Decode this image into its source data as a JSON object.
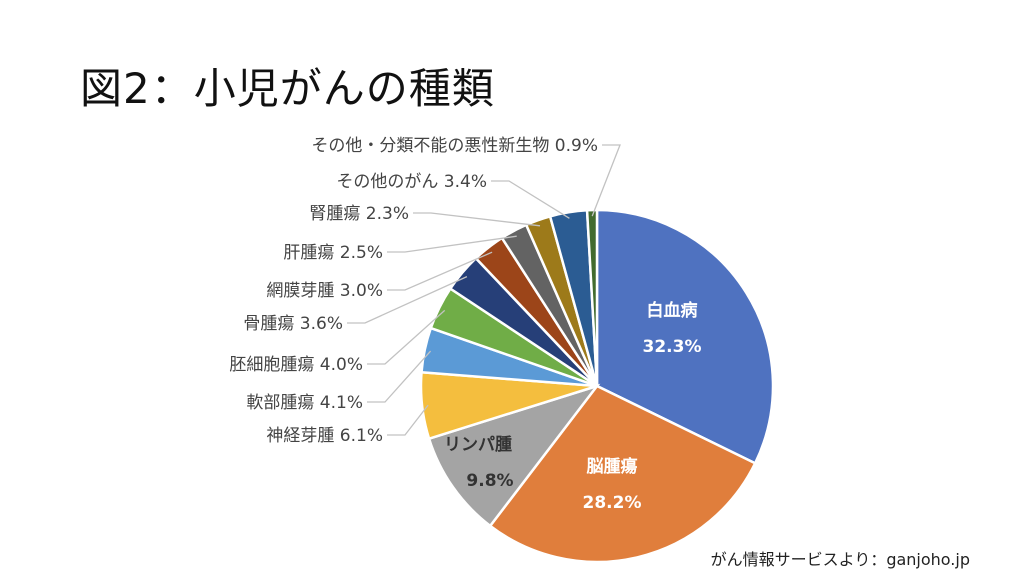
{
  "title": "図2：小児がんの種類",
  "source": "がん情報サービスより：ganjoho.jp",
  "chart_data": {
    "type": "pie",
    "title": "図2：小児がんの種類",
    "slices": [
      {
        "name": "白血病",
        "value": 32.3,
        "label": "32.3%",
        "color": "#4f72c0",
        "label_pos": "inside"
      },
      {
        "name": "脳腫瘍",
        "value": 28.2,
        "label": "28.2%",
        "color": "#e07e3c",
        "label_pos": "inside"
      },
      {
        "name": "リンパ腫",
        "value": 9.8,
        "label": "9.8%",
        "color": "#a4a4a4",
        "label_pos": "inside"
      },
      {
        "name": "神経芽腫",
        "value": 6.1,
        "label": "6.1%",
        "color": "#f4be3e",
        "label_pos": "outside"
      },
      {
        "name": "軟部腫瘍",
        "value": 4.1,
        "label": "4.1%",
        "color": "#5b9ad6",
        "label_pos": "outside"
      },
      {
        "name": "胚細胞腫瘍",
        "value": 4.0,
        "label": "4.0%",
        "color": "#70ad47",
        "label_pos": "outside"
      },
      {
        "name": "骨腫瘍",
        "value": 3.6,
        "label": "3.6%",
        "color": "#263f78",
        "label_pos": "outside"
      },
      {
        "name": "網膜芽腫",
        "value": 3.0,
        "label": "3.0%",
        "color": "#9c4519",
        "label_pos": "outside"
      },
      {
        "name": "肝腫瘍",
        "value": 2.5,
        "label": "2.5%",
        "color": "#636363",
        "label_pos": "outside"
      },
      {
        "name": "腎腫瘍",
        "value": 2.3,
        "label": "2.3%",
        "color": "#9d7a1a",
        "label_pos": "outside"
      },
      {
        "name": "その他のがん",
        "value": 3.4,
        "label": "3.4%",
        "color": "#2b5c93",
        "label_pos": "outside"
      },
      {
        "name": "その他・分類不能の悪性新生物",
        "value": 0.9,
        "label": "0.9%",
        "color": "#426b2e",
        "label_pos": "outside"
      }
    ],
    "start_angle": "12 o'clock",
    "direction": "clockwise",
    "legend": "none"
  }
}
